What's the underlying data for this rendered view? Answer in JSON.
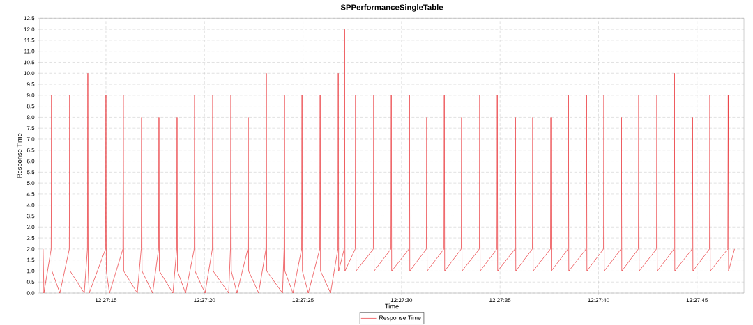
{
  "chart_data": {
    "type": "line",
    "title": "SPPerformanceSingleTable",
    "xlabel": "Time",
    "ylabel": "Response Time",
    "grid": true,
    "legend": "bottom",
    "xlim": [
      12.4532333,
      12.4631611
    ],
    "xticks": [
      {
        "value": 12.4541667,
        "label": "12:27:15"
      },
      {
        "value": 12.4555556,
        "label": "12:27:20"
      },
      {
        "value": 12.4569444,
        "label": "12:27:25"
      },
      {
        "value": 12.4583333,
        "label": "12:27:30"
      },
      {
        "value": 12.4597222,
        "label": "12:27:35"
      },
      {
        "value": 12.4611111,
        "label": "12:27:40"
      },
      {
        "value": 12.4625,
        "label": "12:27:45"
      }
    ],
    "ylim": [
      0,
      12.5
    ],
    "yticks": [
      {
        "value": 0,
        "label": "0.0"
      },
      {
        "value": 0.5,
        "label": "0.5"
      },
      {
        "value": 1,
        "label": "1.0"
      },
      {
        "value": 1.5,
        "label": "1.5"
      },
      {
        "value": 2,
        "label": "2.0"
      },
      {
        "value": 2.5,
        "label": "2.5"
      },
      {
        "value": 3,
        "label": "3.0"
      },
      {
        "value": 3.5,
        "label": "3.5"
      },
      {
        "value": 4,
        "label": "4.0"
      },
      {
        "value": 4.5,
        "label": "4.5"
      },
      {
        "value": 5,
        "label": "5.0"
      },
      {
        "value": 5.5,
        "label": "5.5"
      },
      {
        "value": 6,
        "label": "6.0"
      },
      {
        "value": 6.5,
        "label": "6.5"
      },
      {
        "value": 7,
        "label": "7.0"
      },
      {
        "value": 7.5,
        "label": "7.5"
      },
      {
        "value": 8,
        "label": "8.0"
      },
      {
        "value": 8.5,
        "label": "8.5"
      },
      {
        "value": 9,
        "label": "9.0"
      },
      {
        "value": 9.5,
        "label": "9.5"
      },
      {
        "value": 10,
        "label": "10.0"
      },
      {
        "value": 10.5,
        "label": "10.5"
      },
      {
        "value": 11,
        "label": "11.0"
      },
      {
        "value": 11.5,
        "label": "11.5"
      },
      {
        "value": 12,
        "label": "12.0"
      },
      {
        "value": 12.5,
        "label": "12.5"
      }
    ],
    "series": [
      {
        "name": "Response Time",
        "color": "#e8262a",
        "x": [
          12.4532806,
          12.4532917,
          12.4533944,
          12.4534,
          12.4534056,
          12.4535167,
          12.45365,
          12.4536556,
          12.4536611,
          12.4538611,
          12.4539056,
          12.4539111,
          12.4539167,
          12.4539306,
          12.4541611,
          12.4541667,
          12.4541722,
          12.4542167,
          12.4544056,
          12.4544111,
          12.4544167,
          12.4546083,
          12.4546639,
          12.4546694,
          12.454675,
          12.454825,
          12.4549083,
          12.4549139,
          12.4549194,
          12.4551111,
          12.4551639,
          12.4551694,
          12.455175,
          12.4552889,
          12.4554111,
          12.4554167,
          12.4554222,
          12.4555639,
          12.4556667,
          12.4556722,
          12.4556778,
          12.4558972,
          12.4559222,
          12.4559278,
          12.4559333,
          12.4560139,
          12.4561667,
          12.4561722,
          12.4561778,
          12.4563194,
          12.4564222,
          12.4564278,
          12.4564333,
          12.4566556,
          12.4566778,
          12.4566833,
          12.4566889,
          12.4568028,
          12.456925,
          12.4569306,
          12.4569361,
          12.4570194,
          12.4571806,
          12.4571861,
          12.4571917,
          12.4573333,
          12.4574361,
          12.4574417,
          12.4574472,
          12.457525,
          12.4575306,
          12.4575361,
          12.4576806,
          12.4576861,
          12.4576917,
          12.4579361,
          12.4579417,
          12.4579472,
          12.4581833,
          12.4581889,
          12.4581944,
          12.4584389,
          12.4584444,
          12.45845,
          12.4586833,
          12.4586889,
          12.4586944,
          12.4589306,
          12.4589361,
          12.4589417,
          12.459175,
          12.4591806,
          12.4591861,
          12.4594306,
          12.4594361,
          12.4594417,
          12.4596778,
          12.4596833,
          12.4596889,
          12.4599333,
          12.4599389,
          12.4599444,
          12.4601778,
          12.4601833,
          12.4601889,
          12.4604333,
          12.4604389,
          12.4604444,
          12.4606806,
          12.4606861,
          12.4606917,
          12.4609361,
          12.4609417,
          12.4609472,
          12.4611806,
          12.4611861,
          12.4611917,
          12.4614278,
          12.4614333,
          12.4614389,
          12.4616722,
          12.4616778,
          12.4616833,
          12.4619278,
          12.4619333,
          12.4619389,
          12.462175,
          12.4621806,
          12.4621861,
          12.4624306,
          12.4624361,
          12.4624417,
          12.462675,
          12.4626806,
          12.4626861,
          12.4629333,
          12.4629389,
          12.4629444,
          12.4630278
        ],
        "values": [
          2,
          0,
          2,
          9,
          1,
          0,
          2,
          9,
          1,
          0,
          2,
          10,
          1,
          0,
          2,
          9,
          1,
          0,
          2,
          9,
          1,
          0,
          2,
          8,
          1,
          0,
          2,
          8,
          1,
          0,
          2,
          8,
          1,
          0,
          2,
          9,
          1,
          0,
          2,
          9,
          1,
          0,
          2,
          9,
          1,
          0,
          2,
          8,
          1,
          0,
          2,
          10,
          1,
          0,
          2,
          9,
          1,
          0,
          2,
          9,
          1,
          0,
          2,
          9,
          1,
          0,
          2,
          10,
          1,
          2,
          12,
          1,
          2,
          9,
          1,
          2,
          9,
          1,
          2,
          9,
          1,
          2,
          9,
          1,
          2,
          8,
          1,
          2,
          9,
          1,
          2,
          8,
          1,
          2,
          9,
          1,
          2,
          9,
          1,
          2,
          8,
          1,
          2,
          8,
          1,
          2,
          8,
          1,
          2,
          9,
          1,
          2,
          9,
          1,
          2,
          9,
          1,
          2,
          8,
          1,
          2,
          9,
          1,
          2,
          9,
          1,
          2,
          10,
          1,
          2,
          8,
          1,
          2,
          9,
          1,
          2,
          9,
          1,
          2
        ]
      }
    ]
  }
}
